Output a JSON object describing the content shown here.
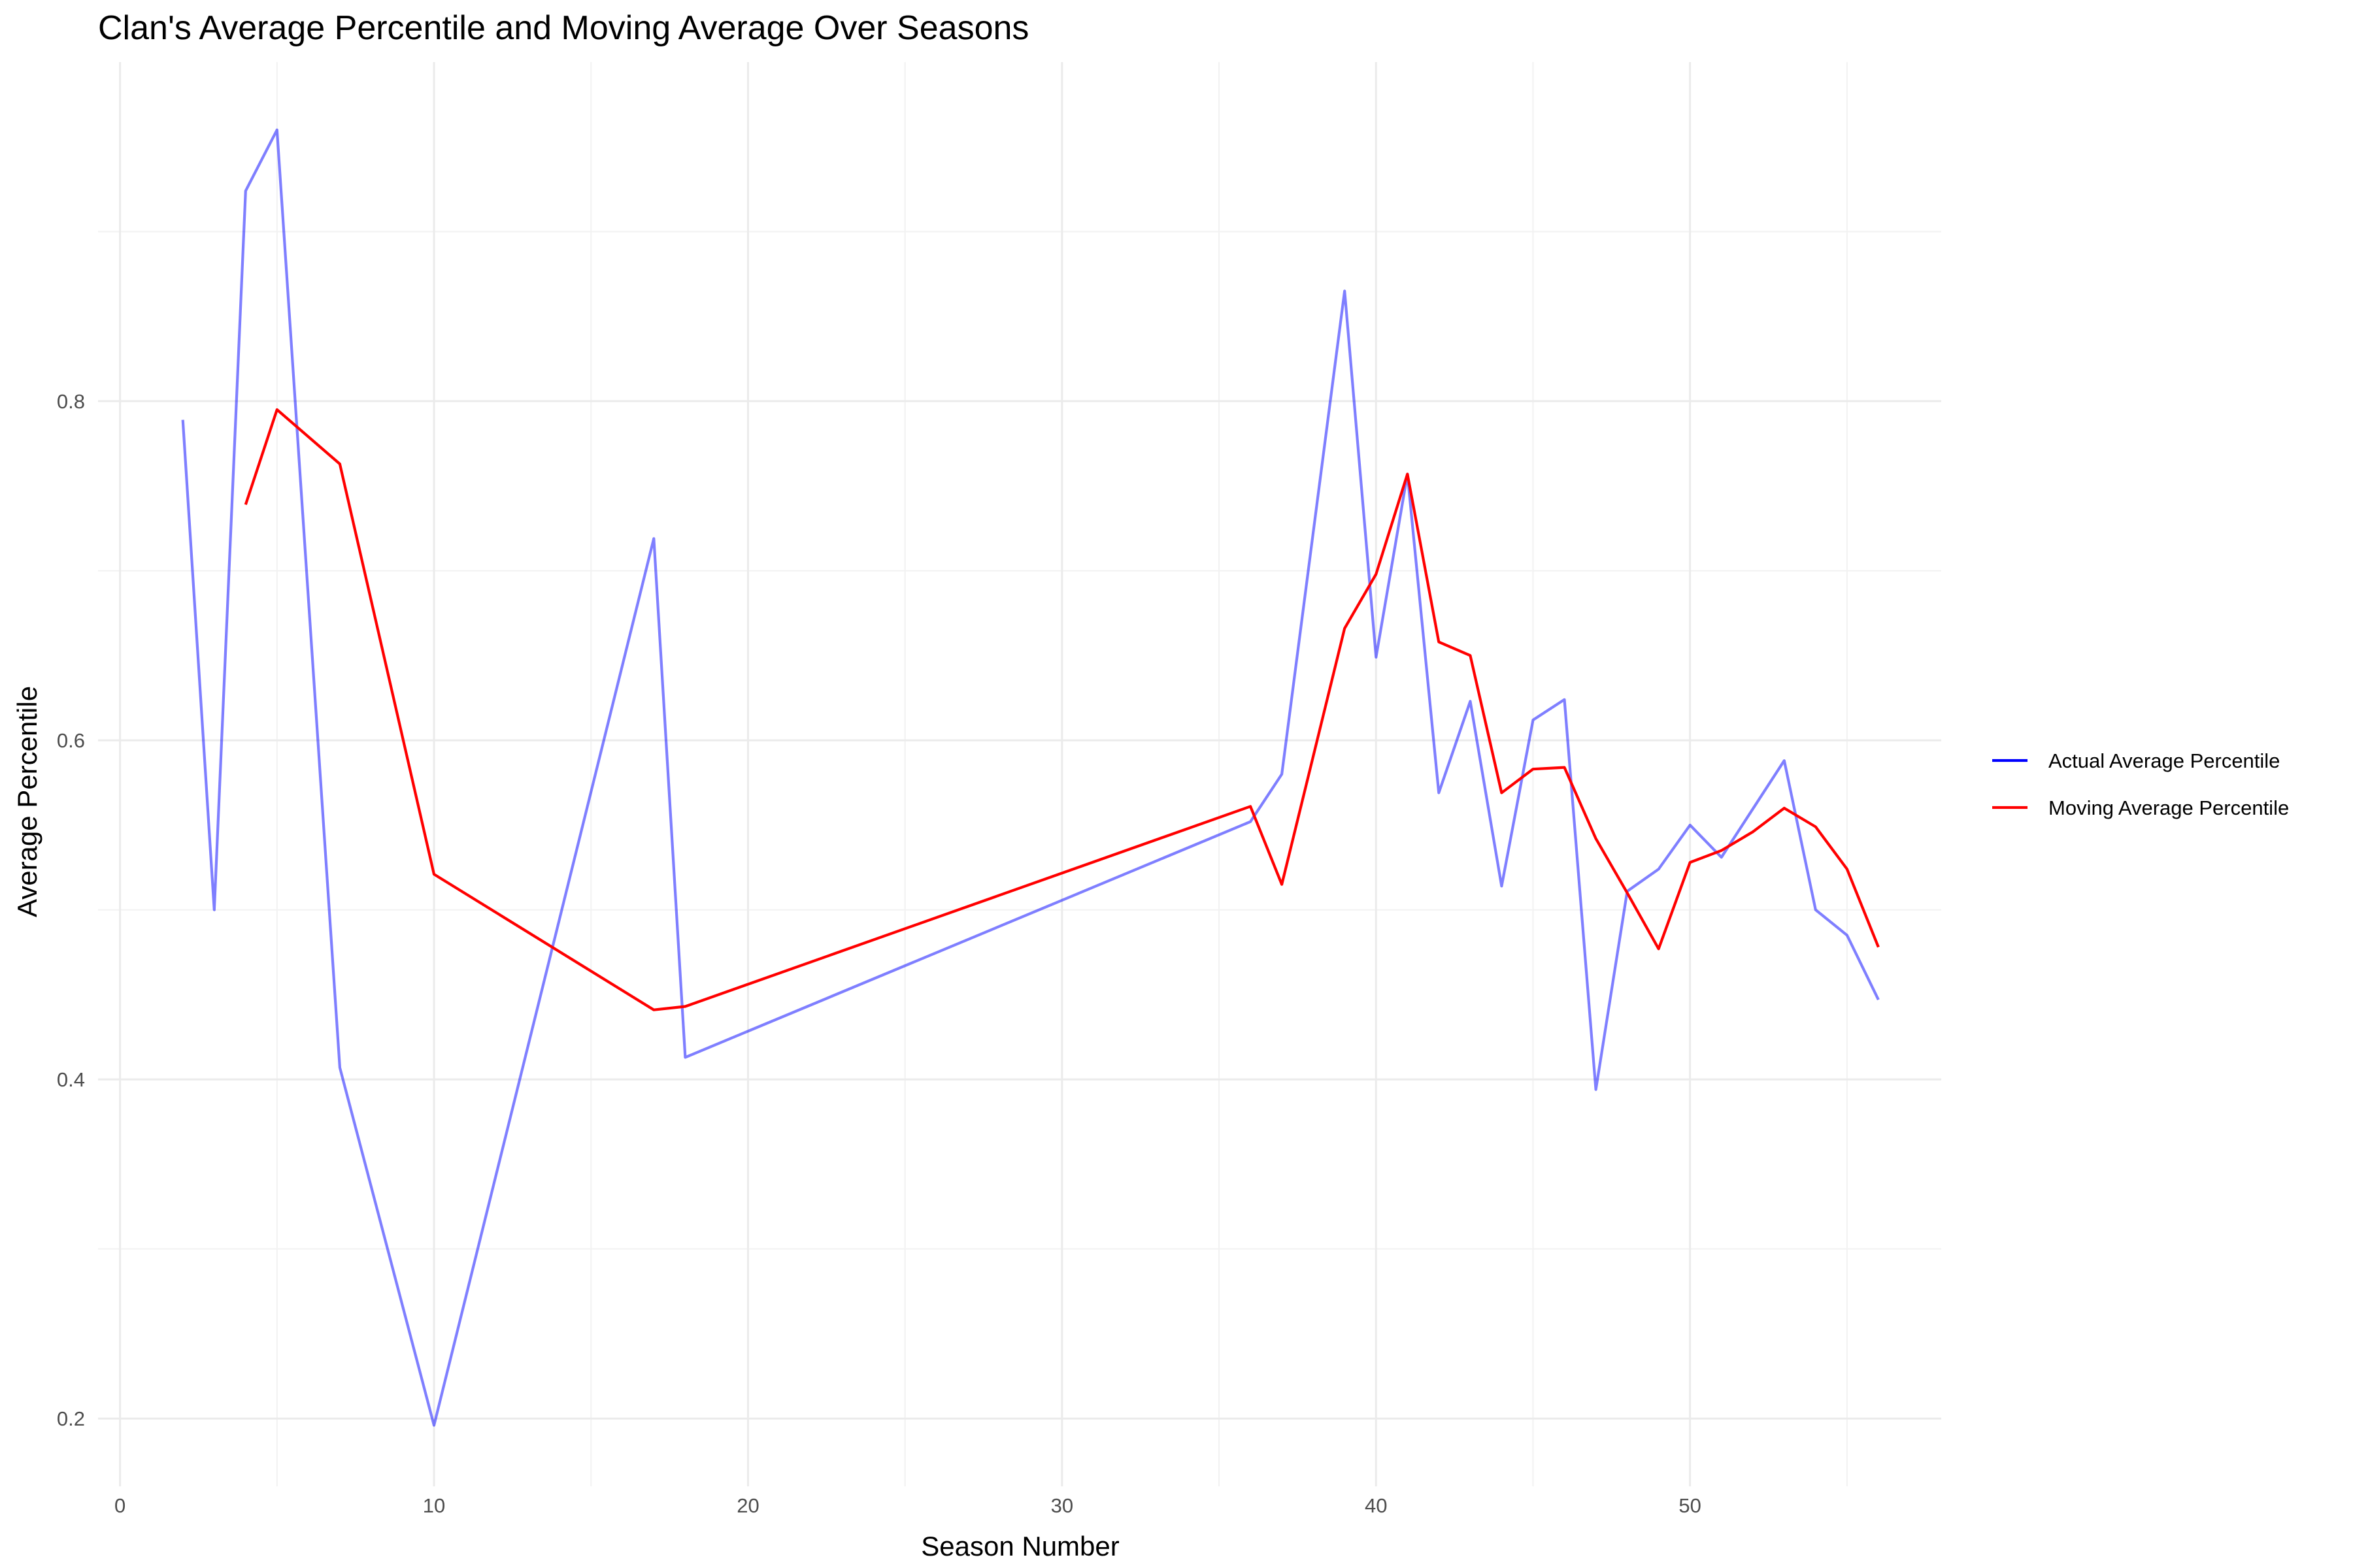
{
  "chart_data": {
    "type": "line",
    "title": "Clan's Average Percentile and Moving Average Over Seasons",
    "xlabel": "Season Number",
    "ylabel": "Average Percentile",
    "xlim": [
      -0.7,
      58
    ],
    "ylim": [
      0.16,
      1.0
    ],
    "x_ticks": [
      0,
      10,
      20,
      30,
      40,
      50
    ],
    "x_tick_labels": [
      "0",
      "10",
      "20",
      "30",
      "40",
      "50"
    ],
    "y_ticks": [
      0.2,
      0.4,
      0.6,
      0.8
    ],
    "y_tick_labels": [
      "0.2",
      "0.4",
      "0.6",
      "0.8"
    ],
    "x_minor_ticks": [
      5,
      15,
      25,
      35,
      45,
      55
    ],
    "y_minor_ticks": [
      0.3,
      0.5,
      0.7,
      0.9
    ],
    "grid": true,
    "legend_position": "right",
    "series": [
      {
        "name": "Actual Average Percentile",
        "color": "#0000ff",
        "line_alpha": 0.5,
        "x": [
          2,
          3,
          4,
          5,
          7,
          10,
          17,
          18,
          36,
          37,
          39,
          40,
          41,
          42,
          43,
          44,
          45,
          46,
          47,
          48,
          49,
          50,
          51,
          53,
          54,
          55,
          56
        ],
        "y": [
          0.789,
          0.5,
          0.924,
          0.96,
          0.407,
          0.196,
          0.719,
          0.413,
          0.552,
          0.58,
          0.865,
          0.649,
          0.757,
          0.569,
          0.623,
          0.514,
          0.612,
          0.624,
          0.394,
          0.511,
          0.524,
          0.55,
          0.531,
          0.588,
          0.5,
          0.485,
          0.447
        ]
      },
      {
        "name": "Moving Average Percentile",
        "color": "#ff0000",
        "line_alpha": 1,
        "x": [
          4,
          5,
          7,
          10,
          17,
          18,
          36,
          37,
          39,
          40,
          41,
          42,
          43,
          44,
          45,
          46,
          47,
          48,
          49,
          50,
          51,
          52,
          53,
          54,
          55,
          56
        ],
        "y": [
          0.739,
          0.795,
          0.763,
          0.521,
          0.441,
          0.443,
          0.561,
          0.515,
          0.666,
          0.698,
          0.757,
          0.658,
          0.65,
          0.569,
          0.583,
          0.584,
          0.542,
          0.51,
          0.477,
          0.528,
          0.535,
          0.546,
          0.56,
          0.549,
          0.524,
          0.478
        ]
      }
    ]
  }
}
